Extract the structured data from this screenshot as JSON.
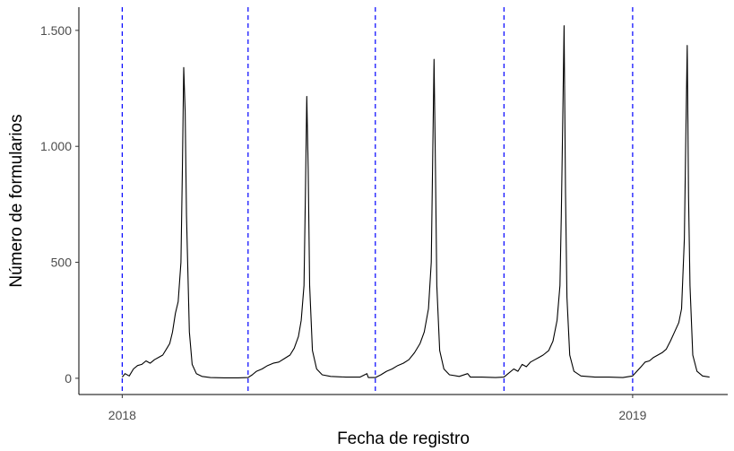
{
  "chart_data": {
    "type": "line",
    "title": "",
    "xlabel": "Fecha de registro",
    "ylabel": "Número de formularios",
    "x_ticks": [
      {
        "date": "2018-01-01",
        "label": "2018"
      },
      {
        "date": "2019-01-01",
        "label": "2019"
      }
    ],
    "y_ticks": [
      {
        "value": 0,
        "label": "0"
      },
      {
        "value": 500,
        "label": "500"
      },
      {
        "value": 1000,
        "label": "1.000"
      },
      {
        "value": 1500,
        "label": "1.500"
      }
    ],
    "xlim": [
      "2017-12-01",
      "2019-03-10"
    ],
    "ylim": [
      -70,
      1600
    ],
    "grid": false,
    "legend": "none",
    "colors": {
      "line": "#000000",
      "reference_lines": "#0000ff",
      "axis": "#000000",
      "tick_text": "#4d4d4d"
    },
    "reference_lines": [
      "2018-01-01",
      "2018-04-01",
      "2018-07-01",
      "2018-10-01",
      "2019-01-01"
    ],
    "series": [
      {
        "values": [
          [
            "2018-01-01",
            5
          ],
          [
            "2018-01-03",
            20
          ],
          [
            "2018-01-06",
            10
          ],
          [
            "2018-01-09",
            40
          ],
          [
            "2018-01-12",
            55
          ],
          [
            "2018-01-15",
            60
          ],
          [
            "2018-01-18",
            75
          ],
          [
            "2018-01-21",
            65
          ],
          [
            "2018-01-24",
            80
          ],
          [
            "2018-01-27",
            90
          ],
          [
            "2018-01-30",
            100
          ],
          [
            "2018-02-02",
            130
          ],
          [
            "2018-02-04",
            150
          ],
          [
            "2018-02-06",
            200
          ],
          [
            "2018-02-08",
            280
          ],
          [
            "2018-02-10",
            330
          ],
          [
            "2018-02-12",
            500
          ],
          [
            "2018-02-13",
            900
          ],
          [
            "2018-02-14",
            1340
          ],
          [
            "2018-02-15",
            1150
          ],
          [
            "2018-02-16",
            700
          ],
          [
            "2018-02-18",
            200
          ],
          [
            "2018-02-20",
            60
          ],
          [
            "2018-02-23",
            20
          ],
          [
            "2018-02-27",
            8
          ],
          [
            "2018-03-05",
            3
          ],
          [
            "2018-03-15",
            2
          ],
          [
            "2018-03-25",
            2
          ],
          [
            "2018-04-01",
            3
          ],
          [
            "2018-04-04",
            15
          ],
          [
            "2018-04-07",
            30
          ],
          [
            "2018-04-11",
            40
          ],
          [
            "2018-04-15",
            55
          ],
          [
            "2018-04-19",
            65
          ],
          [
            "2018-04-23",
            70
          ],
          [
            "2018-04-27",
            85
          ],
          [
            "2018-05-01",
            100
          ],
          [
            "2018-05-04",
            130
          ],
          [
            "2018-05-07",
            180
          ],
          [
            "2018-05-09",
            250
          ],
          [
            "2018-05-11",
            400
          ],
          [
            "2018-05-12",
            800
          ],
          [
            "2018-05-13",
            1215
          ],
          [
            "2018-05-14",
            900
          ],
          [
            "2018-05-15",
            400
          ],
          [
            "2018-05-17",
            120
          ],
          [
            "2018-05-20",
            40
          ],
          [
            "2018-05-24",
            15
          ],
          [
            "2018-05-30",
            8
          ],
          [
            "2018-06-10",
            5
          ],
          [
            "2018-06-20",
            5
          ],
          [
            "2018-06-25",
            20
          ],
          [
            "2018-06-26",
            3
          ],
          [
            "2018-07-01",
            3
          ],
          [
            "2018-07-05",
            15
          ],
          [
            "2018-07-09",
            30
          ],
          [
            "2018-07-13",
            40
          ],
          [
            "2018-07-17",
            55
          ],
          [
            "2018-07-21",
            65
          ],
          [
            "2018-07-25",
            80
          ],
          [
            "2018-07-29",
            110
          ],
          [
            "2018-08-02",
            150
          ],
          [
            "2018-08-05",
            200
          ],
          [
            "2018-08-08",
            300
          ],
          [
            "2018-08-10",
            500
          ],
          [
            "2018-08-11",
            950
          ],
          [
            "2018-08-12",
            1375
          ],
          [
            "2018-08-13",
            900
          ],
          [
            "2018-08-14",
            400
          ],
          [
            "2018-08-16",
            120
          ],
          [
            "2018-08-19",
            40
          ],
          [
            "2018-08-23",
            15
          ],
          [
            "2018-08-30",
            8
          ],
          [
            "2018-09-05",
            20
          ],
          [
            "2018-09-07",
            5
          ],
          [
            "2018-09-15",
            5
          ],
          [
            "2018-09-25",
            3
          ],
          [
            "2018-10-01",
            5
          ],
          [
            "2018-10-04",
            20
          ],
          [
            "2018-10-08",
            40
          ],
          [
            "2018-10-11",
            30
          ],
          [
            "2018-10-14",
            60
          ],
          [
            "2018-10-17",
            50
          ],
          [
            "2018-10-20",
            70
          ],
          [
            "2018-10-23",
            80
          ],
          [
            "2018-10-26",
            90
          ],
          [
            "2018-10-29",
            100
          ],
          [
            "2018-11-02",
            120
          ],
          [
            "2018-11-05",
            160
          ],
          [
            "2018-11-08",
            250
          ],
          [
            "2018-11-10",
            400
          ],
          [
            "2018-11-11",
            700
          ],
          [
            "2018-11-12",
            1110
          ],
          [
            "2018-11-13",
            1520
          ],
          [
            "2018-11-14",
            800
          ],
          [
            "2018-11-15",
            350
          ],
          [
            "2018-11-17",
            100
          ],
          [
            "2018-11-20",
            30
          ],
          [
            "2018-11-25",
            10
          ],
          [
            "2018-12-05",
            5
          ],
          [
            "2018-12-15",
            5
          ],
          [
            "2018-12-25",
            3
          ],
          [
            "2019-01-01",
            10
          ],
          [
            "2019-01-04",
            30
          ],
          [
            "2019-01-07",
            50
          ],
          [
            "2019-01-10",
            70
          ],
          [
            "2019-01-13",
            75
          ],
          [
            "2019-01-16",
            90
          ],
          [
            "2019-01-19",
            100
          ],
          [
            "2019-01-22",
            110
          ],
          [
            "2019-01-25",
            125
          ],
          [
            "2019-01-28",
            160
          ],
          [
            "2019-01-31",
            200
          ],
          [
            "2019-02-03",
            240
          ],
          [
            "2019-02-05",
            300
          ],
          [
            "2019-02-07",
            600
          ],
          [
            "2019-02-08",
            1030
          ],
          [
            "2019-02-09",
            1435
          ],
          [
            "2019-02-10",
            780
          ],
          [
            "2019-02-11",
            400
          ],
          [
            "2019-02-13",
            100
          ],
          [
            "2019-02-16",
            30
          ],
          [
            "2019-02-20",
            10
          ],
          [
            "2019-02-25",
            5
          ]
        ]
      }
    ]
  }
}
